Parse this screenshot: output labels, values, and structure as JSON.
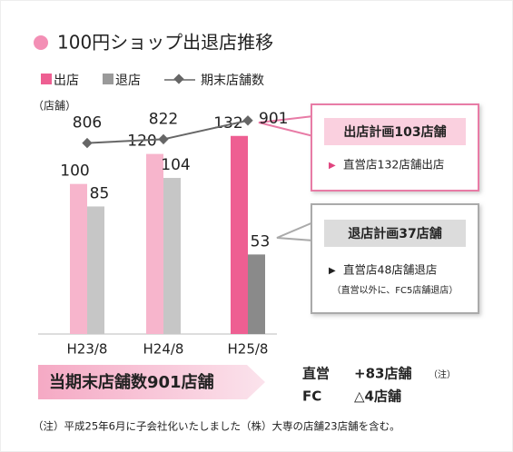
{
  "chart_data": {
    "type": "bar_line",
    "title": "100円ショップ出退店推移",
    "unit_label": "（店舗）",
    "categories": [
      "H23/8",
      "H24/8",
      "H25/8"
    ],
    "series": [
      {
        "name": "出店",
        "color": "#ee5f92",
        "colors": [
          "#f7b5cc",
          "#f7b5cc",
          "#ee5f92"
        ],
        "values": [
          100,
          120,
          132
        ]
      },
      {
        "name": "退店",
        "color": "#9a9a9a",
        "colors": [
          "#c6c6c6",
          "#c6c6c6",
          "#8a8a8a"
        ],
        "values": [
          85,
          104,
          53
        ]
      },
      {
        "name": "期末店舗数",
        "color": "#666666",
        "axis": "y2",
        "values": [
          806,
          822,
          901
        ]
      }
    ],
    "ylim": [
      0,
      150
    ],
    "y2lim": [
      0,
      950
    ]
  },
  "callouts": [
    {
      "title": "出店計画103店舗",
      "lines": [
        "直営店132店舗出店"
      ]
    },
    {
      "title": "退店計画37店舗",
      "lines": [
        "直営店48店舗退店",
        "（直営以外に、FC5店舗退店）"
      ]
    }
  ],
  "summary": {
    "headline": "当期末店舗数901店舗",
    "rows": [
      {
        "label": "直営",
        "value": "+83店舗",
        "note": "（注）"
      },
      {
        "label": "FC",
        "value": "△4店舗"
      }
    ]
  },
  "note": "（注）平成25年6月に子会社化いたしました（株）大専の店舗23店舗を含む。"
}
